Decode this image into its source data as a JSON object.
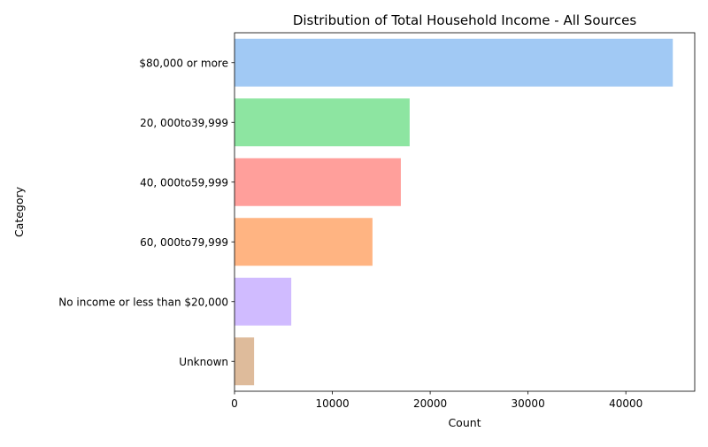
{
  "chart_data": {
    "type": "bar",
    "orientation": "horizontal",
    "title": "Distribution of Total Household Income - All Sources",
    "xlabel": "Count",
    "ylabel": "Category",
    "categories": [
      "$80,000 or more",
      "20, 000to39,999",
      "40, 000to59,999",
      "60, 000to79,999",
      "No income or less than $20,000",
      "Unknown"
    ],
    "values": [
      44800,
      17900,
      17000,
      14100,
      5800,
      2000
    ],
    "colors": [
      "#a1c9f4",
      "#8de5a1",
      "#ff9f9b",
      "#ffb482",
      "#d0bbff",
      "#debb9b"
    ],
    "xlim": [
      0,
      47040
    ],
    "xticks": [
      0,
      10000,
      20000,
      30000,
      40000
    ],
    "grid": false,
    "legend": "none"
  }
}
